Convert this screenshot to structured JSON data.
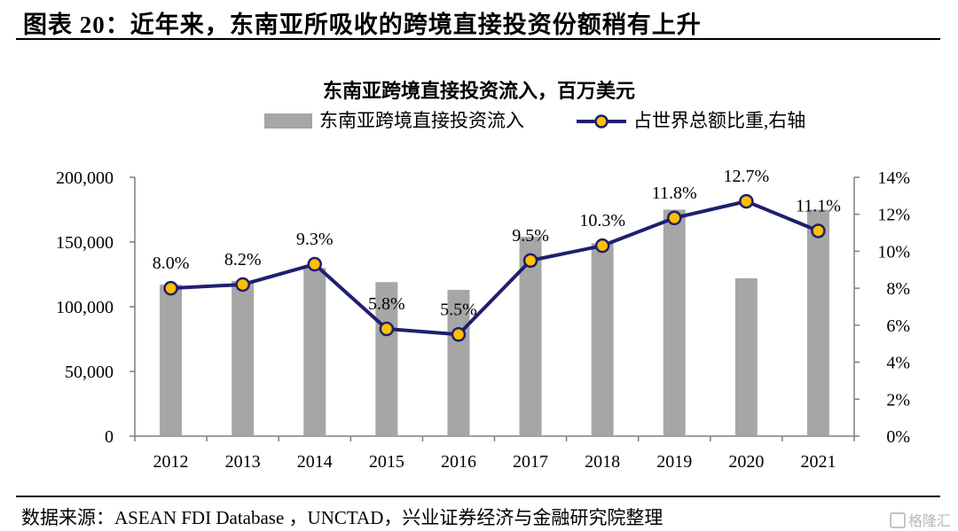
{
  "figure": {
    "title": "图表 20：近年来，东南亚所吸收的跨境直接投资份额稍有上升",
    "source": "数据来源：ASEAN FDI Database ，UNCTAD，兴业证券经济与金融研究院整理",
    "watermark": "格隆汇"
  },
  "chart_data": {
    "type": "bar",
    "title": "东南亚跨境直接投资流入，百万美元",
    "categories": [
      "2012",
      "2013",
      "2014",
      "2015",
      "2016",
      "2017",
      "2018",
      "2019",
      "2020",
      "2021"
    ],
    "series": [
      {
        "name": "东南亚跨境直接投资流入",
        "type": "bar",
        "axis": "left",
        "color": "#a6a6a6",
        "values": [
          117000,
          120000,
          130000,
          119000,
          113000,
          154000,
          149000,
          175000,
          122000,
          175000
        ]
      },
      {
        "name": "占世界总额比重,右轴",
        "type": "line",
        "axis": "right",
        "color": "#1f1f6e",
        "marker_color": "#ffc000",
        "values": [
          8.0,
          8.2,
          9.3,
          5.8,
          5.5,
          9.5,
          10.3,
          11.8,
          12.7,
          11.1
        ],
        "labels": [
          "8.0%",
          "8.2%",
          "9.3%",
          "5.8%",
          "5.5%",
          "9.5%",
          "10.3%",
          "11.8%",
          "12.7%",
          "11.1%"
        ]
      }
    ],
    "y_left": {
      "min": 0,
      "max": 200000,
      "ticks": [
        0,
        50000,
        100000,
        150000,
        200000
      ],
      "tick_labels": [
        "0",
        "50,000",
        "100,000",
        "150,000",
        "200,000"
      ]
    },
    "y_right": {
      "min": 0,
      "max": 14,
      "ticks": [
        0,
        2,
        4,
        6,
        8,
        10,
        12,
        14
      ],
      "tick_labels": [
        "0%",
        "2%",
        "4%",
        "6%",
        "8%",
        "10%",
        "12%",
        "14%"
      ]
    },
    "grid": false,
    "legend": "top"
  }
}
